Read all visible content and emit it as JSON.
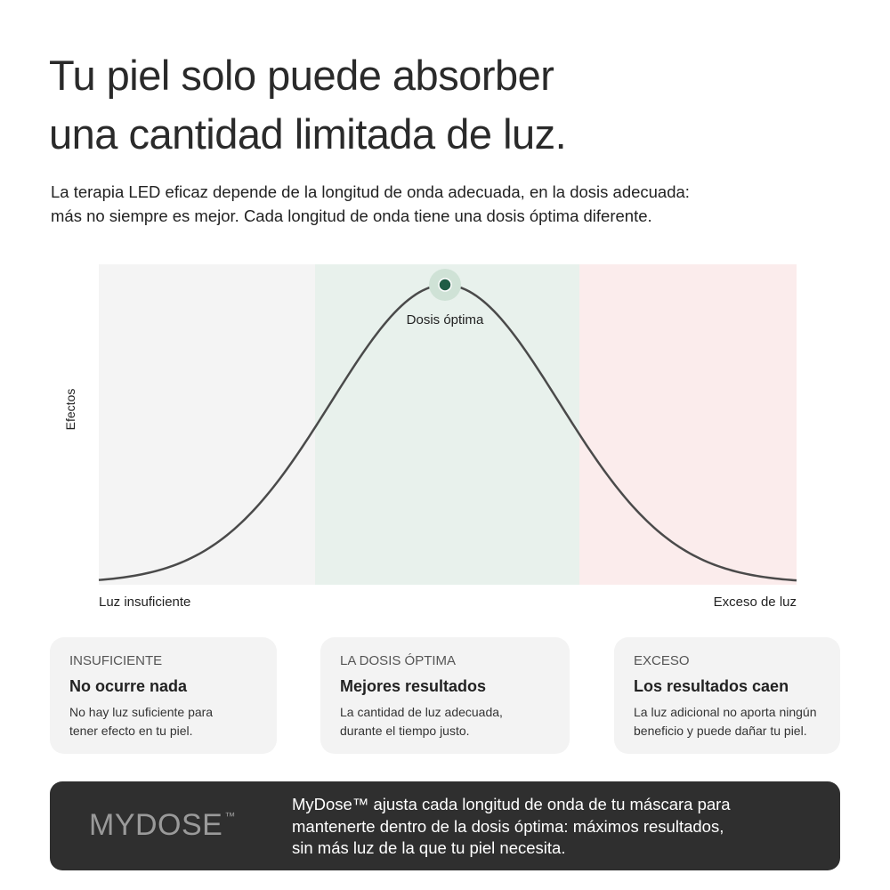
{
  "header": {
    "title_lines": [
      "Tu piel solo puede absorber",
      "una cantidad limitada de luz."
    ],
    "intro_lines": [
      "La terapia LED eficaz depende de la longitud de onda adecuada, en la dosis adecuada:",
      "más no siempre es mejor. Cada longitud de onda tiene una dosis óptima diferente."
    ]
  },
  "diagram": {
    "y_label": "Efectos",
    "peak_label": "Dosis óptima",
    "x_left_label": "Luz insuficiente",
    "x_right_label": "Exceso de luz"
  },
  "cards": [
    {
      "kicker": "INSUFICIENTE",
      "title": "No ocurre nada",
      "text_lines": [
        "No hay luz suficiente para",
        "tener efecto en tu piel."
      ]
    },
    {
      "kicker": "LA DOSIS ÓPTIMA",
      "title": "Mejores resultados",
      "text_lines": [
        "La cantidad de luz adecuada,",
        "durante el tiempo justo."
      ]
    },
    {
      "kicker": "EXCESO",
      "title": "Los resultados caen",
      "text_lines": [
        "La luz adicional no aporta ningún",
        "beneficio y puede dañar tu piel."
      ]
    }
  ],
  "footer": {
    "brand": "MYDOSE",
    "brand_mark": "™",
    "text_lines": [
      "MyDose™ ajusta cada longitud de onda de tu máscara para",
      "mantenerte dentro de la dosis óptima: máximos resultados,",
      "sin más luz de la que tu piel necesita."
    ]
  }
}
